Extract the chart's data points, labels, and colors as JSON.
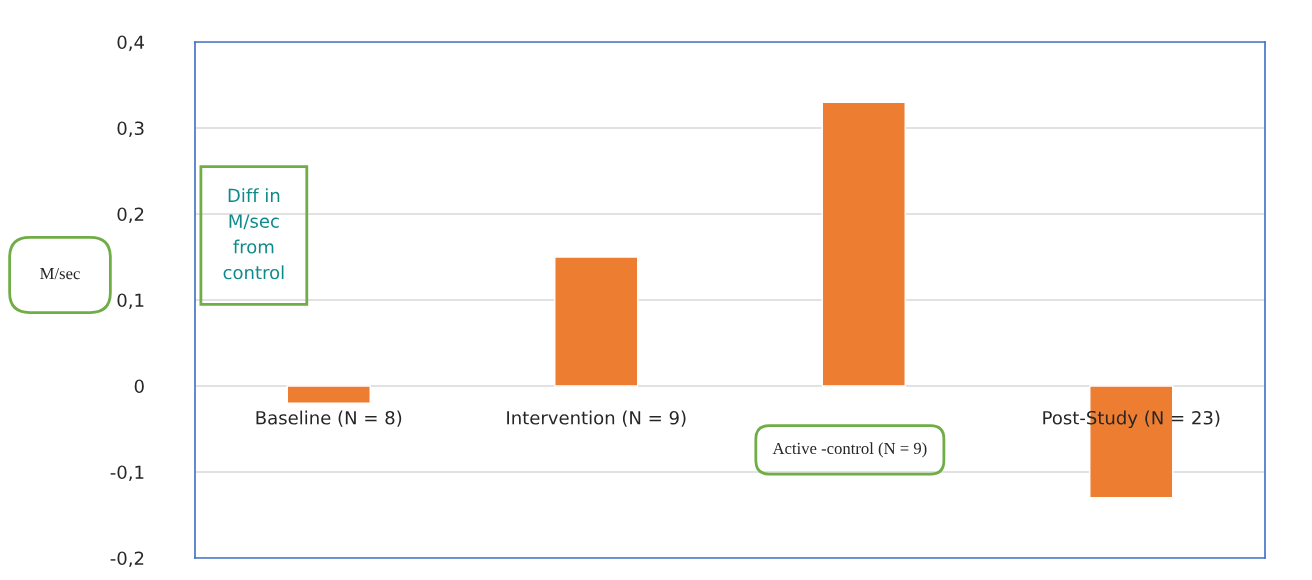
{
  "chart_data": {
    "type": "bar",
    "categories": [
      "Baseline (N = 8)",
      "Intervention (N = 9)",
      "Active -control (N = 9)",
      "Post-Study (N = 23)"
    ],
    "values": [
      -0.02,
      0.15,
      0.33,
      -0.13
    ],
    "color": "#ed7d31",
    "ylabel": "M/sec",
    "annotations": [
      "Diff in M/sec from control"
    ],
    "ylim": [
      -0.2,
      0.4
    ],
    "yticks": [
      {
        "value": -0.2,
        "label": "-0,2"
      },
      {
        "value": -0.1,
        "label": "-0,1"
      },
      0,
      {
        "value": 0.1,
        "label": "0,1"
      },
      {
        "value": 0.2,
        "label": "0,2"
      },
      {
        "value": 0.3,
        "label": "0,3"
      },
      {
        "value": 0.4,
        "label": "0,4"
      }
    ],
    "grid": "y",
    "legend": false
  }
}
